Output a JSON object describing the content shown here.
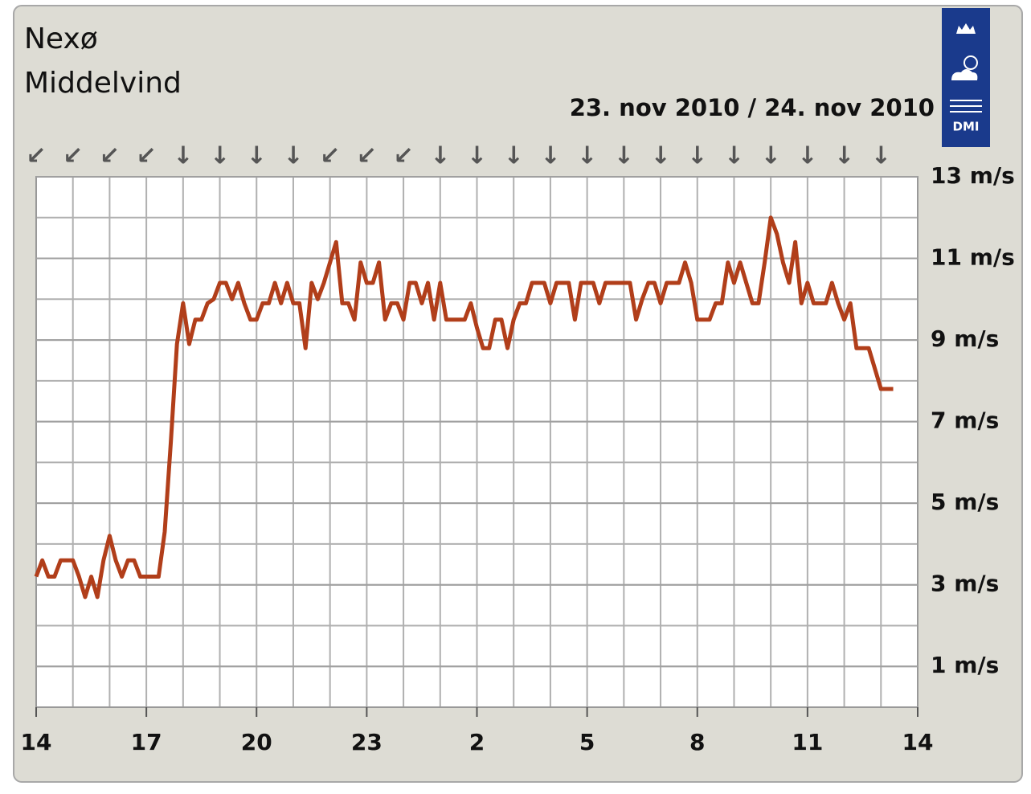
{
  "chart_data": {
    "type": "line",
    "title": "Nexø",
    "subtitle": "Middelvind",
    "date_label": "23. nov 2010 / 24. nov 2010",
    "logo_text": "DMI",
    "x": [
      0,
      10,
      20,
      30,
      40,
      50,
      60,
      70,
      80,
      90,
      100,
      110,
      120,
      130,
      140,
      150,
      160,
      170,
      180,
      190,
      200,
      210,
      220,
      230,
      240,
      250,
      260,
      270,
      280,
      290,
      300,
      310,
      320,
      330,
      340,
      350,
      360,
      370,
      380,
      390,
      400,
      410,
      420,
      430,
      440,
      450,
      460,
      470,
      480,
      490,
      500,
      510,
      520,
      530,
      540,
      550,
      560,
      570,
      580,
      590,
      600,
      610,
      620,
      630,
      640,
      650,
      660,
      670,
      680,
      690,
      700,
      710,
      720,
      730,
      740,
      750,
      760,
      770,
      780,
      790,
      800,
      810,
      820,
      830,
      840,
      850,
      860,
      870,
      880,
      890,
      900,
      910,
      920,
      930,
      940,
      950,
      960,
      970,
      980,
      990,
      1000,
      1010,
      1020,
      1030,
      1040,
      1050,
      1060,
      1070,
      1080,
      1090,
      1100,
      1110,
      1120,
      1130,
      1140,
      1150,
      1160,
      1170,
      1180,
      1190,
      1200,
      1210,
      1220,
      1230,
      1240,
      1250,
      1260,
      1270,
      1280,
      1290,
      1300,
      1310,
      1320,
      1330,
      1340,
      1350,
      1360,
      1370,
      1380,
      1390,
      1400
    ],
    "series": [
      {
        "name": "Middelvind",
        "color": "#b13e1a",
        "values": [
          3.2,
          3.6,
          3.2,
          3.2,
          3.6,
          3.6,
          3.6,
          3.2,
          2.7,
          3.2,
          2.7,
          3.6,
          4.2,
          3.6,
          3.2,
          3.6,
          3.6,
          3.2,
          3.2,
          3.2,
          3.2,
          4.3,
          6.5,
          8.9,
          9.9,
          8.9,
          9.5,
          9.5,
          9.9,
          10.0,
          10.4,
          10.4,
          10.0,
          10.4,
          9.9,
          9.5,
          9.5,
          9.9,
          9.9,
          10.4,
          9.9,
          10.4,
          9.9,
          9.9,
          8.8,
          10.4,
          10.0,
          10.4,
          10.9,
          11.4,
          9.9,
          9.9,
          9.5,
          10.9,
          10.4,
          10.4,
          10.9,
          9.5,
          9.9,
          9.9,
          9.5,
          10.4,
          10.4,
          9.9,
          10.4,
          9.5,
          10.4,
          9.5,
          9.5,
          9.5,
          9.5,
          9.9,
          9.3,
          8.8,
          8.8,
          9.5,
          9.5,
          8.8,
          9.5,
          9.9,
          9.9,
          10.4,
          10.4,
          10.4,
          9.9,
          10.4,
          10.4,
          10.4,
          9.5,
          10.4,
          10.4,
          10.4,
          9.9,
          10.4,
          10.4,
          10.4,
          10.4,
          10.4,
          9.5,
          10.0,
          10.4,
          10.4,
          9.9,
          10.4,
          10.4,
          10.4,
          10.9,
          10.4,
          9.5,
          9.5,
          9.5,
          9.9,
          9.9,
          10.9,
          10.4,
          10.9,
          10.4,
          9.9,
          9.9,
          10.9,
          12.0,
          11.6,
          10.9,
          10.4,
          11.4,
          9.9,
          10.4,
          9.9,
          9.9,
          9.9,
          10.4,
          9.9,
          9.5,
          9.9,
          8.8,
          8.8,
          8.8,
          8.3,
          7.8,
          7.8,
          7.8
        ]
      }
    ],
    "xlim": [
      0,
      1440
    ],
    "xticks": [
      {
        "value": 0,
        "label": "14"
      },
      {
        "value": 180,
        "label": "17"
      },
      {
        "value": 360,
        "label": "20"
      },
      {
        "value": 540,
        "label": "23"
      },
      {
        "value": 720,
        "label": "2"
      },
      {
        "value": 900,
        "label": "5"
      },
      {
        "value": 1080,
        "label": "8"
      },
      {
        "value": 1260,
        "label": "11"
      },
      {
        "value": 1440,
        "label": "14"
      }
    ],
    "ylim": [
      0,
      13
    ],
    "yticks": [
      {
        "value": 13,
        "label": "13 m/s"
      },
      {
        "value": 11,
        "label": "11 m/s"
      },
      {
        "value": 9,
        "label": "9 m/s"
      },
      {
        "value": 7,
        "label": "7 m/s"
      },
      {
        "value": 5,
        "label": "5 m/s"
      },
      {
        "value": 3,
        "label": "3 m/s"
      },
      {
        "value": 1,
        "label": "1 m/s"
      }
    ],
    "grid": true,
    "x_grid_step": 60,
    "y_grid_step": 1,
    "wind_direction": {
      "x": [
        0,
        60,
        120,
        180,
        240,
        300,
        360,
        420,
        480,
        540,
        600,
        660,
        720,
        780,
        840,
        900,
        960,
        1020,
        1080,
        1140,
        1200,
        1260,
        1320,
        1380
      ],
      "arrows": [
        "↙",
        "↙",
        "↙",
        "↙",
        "↓",
        "↓",
        "↓",
        "↓",
        "↙",
        "↙",
        "↙",
        "↓",
        "↓",
        "↓",
        "↓",
        "↓",
        "↓",
        "↓",
        "↓",
        "↓",
        "↓",
        "↓",
        "↓",
        "↓"
      ]
    }
  }
}
